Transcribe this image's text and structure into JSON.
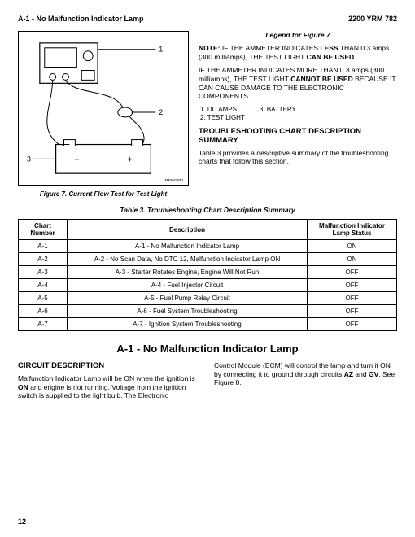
{
  "header": {
    "left": "A-1 - No Malfunction Indicator Lamp",
    "right": "2200 YRM 782"
  },
  "figure7": {
    "caption": "Figure 7. Current Flow Test for Test Light",
    "corner_code": "HM060000",
    "callouts": {
      "1": "1",
      "2": "2",
      "3": "3"
    },
    "battery": {
      "minus": "−",
      "plus": "+"
    }
  },
  "legend": {
    "title": "Legend for Figure 7",
    "note1_a": "NOTE:",
    "note1_b": " IF THE AMMETER INDICATES ",
    "note1_c": "LESS",
    "note1_d": " THAN 0.3 amps (300 milliamps), THE TEST LIGHT ",
    "note1_e": "CAN BE USED",
    "note1_f": ".",
    "note2_a": "IF THE AMMETER INDICATES MORE THAN 0.3 amps (300 milliamps), THE TEST LIGHT ",
    "note2_b": "CANNOT BE USED",
    "note2_c": " BECAUSE IT CAN CAUSE DAMAGE TO THE ELECTRONIC COMPONENTS.",
    "items": {
      "i1": "1.  DC AMPS",
      "i2": "2.  TEST LIGHT",
      "i3": "3.  BATTERY"
    }
  },
  "ts": {
    "heading": "TROUBLESHOOTING CHART DESCRIPTION SUMMARY",
    "para": "Table 3 provides a descriptive summary of the troubleshooting charts that follow this section."
  },
  "table3": {
    "caption": "Table 3.  Troubleshooting Chart Description Summary",
    "head": {
      "c1": "Chart Number",
      "c2": "Description",
      "c3": "Malfunction Indicator Lamp Status"
    },
    "rows": [
      {
        "n": "A-1",
        "d": "A-1 - No Malfunction Indicator Lamp",
        "s": "ON"
      },
      {
        "n": "A-2",
        "d": "A-2 - No Scan Data, No DTC 12, Malfunction Indicator Lamp ON",
        "s": "ON"
      },
      {
        "n": "A-3",
        "d": "A-3 - Starter Rotates Engine, Engine Will Not Run",
        "s": "OFF"
      },
      {
        "n": "A-4",
        "d": "A-4 - Fuel Injector Circuit",
        "s": "OFF"
      },
      {
        "n": "A-5",
        "d": "A-5 - Fuel Pump Relay Circuit",
        "s": "OFF"
      },
      {
        "n": "A-6",
        "d": "A-6 - Fuel System Troubleshooting",
        "s": "OFF"
      },
      {
        "n": "A-7",
        "d": "A-7 - Ignition System Troubleshooting",
        "s": "OFF"
      }
    ]
  },
  "section": {
    "title": "A-1 - No Malfunction Indicator Lamp",
    "sub": "CIRCUIT DESCRIPTION",
    "left_a": "Malfunction Indicator Lamp will be ON when the ignition is ",
    "left_b": "ON",
    "left_c": " and engine is not running. Voltage from the ignition switch is supplied to the light bulb. The Electronic",
    "right_a": "Control Module (ECM) will control the lamp and turn it ON by connecting it to ground through circuits ",
    "right_b": "AZ",
    "right_c": " and ",
    "right_d": "GV",
    "right_e": ". See Figure 8."
  },
  "page": "12"
}
